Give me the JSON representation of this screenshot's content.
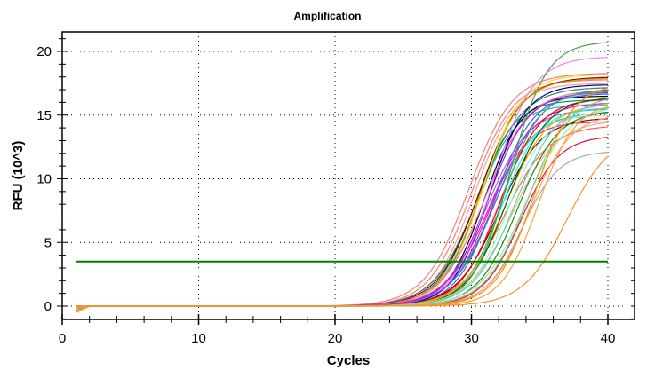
{
  "chart_data": {
    "type": "line",
    "title": "Amplification",
    "xlabel": "Cycles",
    "ylabel": "RFU (10^3)",
    "xlim": [
      0,
      42
    ],
    "ylim": [
      -1.1,
      21.5
    ],
    "xticks": [
      0,
      10,
      20,
      30,
      40
    ],
    "yticks": [
      0,
      5,
      10,
      15,
      20
    ],
    "grid": true,
    "legend": "none",
    "threshold": {
      "value": 3.5,
      "color": "#008000"
    },
    "cycles": [
      1,
      40
    ],
    "series_model": "sigmoid: baseline 0, midpoint ct, plateau max",
    "series": [
      {
        "ct": 27.6,
        "max": 18.3,
        "color": "#f08080"
      },
      {
        "ct": 27.8,
        "max": 17.8,
        "color": "#fa8072"
      },
      {
        "ct": 28.0,
        "max": 17.5,
        "color": "#f4a0a0"
      },
      {
        "ct": 28.1,
        "max": 16.2,
        "color": "#008b8b"
      },
      {
        "ct": 28.2,
        "max": 15.8,
        "color": "#20b2aa"
      },
      {
        "ct": 28.3,
        "max": 17.2,
        "color": "#2e8b57"
      },
      {
        "ct": 28.4,
        "max": 18.0,
        "color": "#8b0000"
      },
      {
        "ct": 28.5,
        "max": 17.9,
        "color": "#d4a017"
      },
      {
        "ct": 28.6,
        "max": 18.2,
        "color": "#ffd700"
      },
      {
        "ct": 28.7,
        "max": 16.5,
        "color": "#000000"
      },
      {
        "ct": 28.8,
        "max": 17.0,
        "color": "#ff69b4"
      },
      {
        "ct": 28.9,
        "max": 15.5,
        "color": "#9370db"
      },
      {
        "ct": 29.0,
        "max": 16.8,
        "color": "#8a2be2"
      },
      {
        "ct": 29.0,
        "max": 14.5,
        "color": "#ff1493"
      },
      {
        "ct": 29.1,
        "max": 17.4,
        "color": "#00008b"
      },
      {
        "ct": 29.2,
        "max": 16.0,
        "color": "#ff00ff"
      },
      {
        "ct": 29.3,
        "max": 15.2,
        "color": "#00ced1"
      },
      {
        "ct": 29.4,
        "max": 19.6,
        "color": "#ee82ee"
      },
      {
        "ct": 29.5,
        "max": 16.7,
        "color": "#4169e1"
      },
      {
        "ct": 29.6,
        "max": 15.0,
        "color": "#ffb6c1"
      },
      {
        "ct": 29.7,
        "max": 17.1,
        "color": "#6a5acd"
      },
      {
        "ct": 29.8,
        "max": 14.8,
        "color": "#800000"
      },
      {
        "ct": 29.9,
        "max": 16.3,
        "color": "#ff0000"
      },
      {
        "ct": 30.0,
        "max": 15.6,
        "color": "#00ffff"
      },
      {
        "ct": 30.1,
        "max": 16.9,
        "color": "#3cb371"
      },
      {
        "ct": 30.2,
        "max": 14.2,
        "color": "#ff6347"
      },
      {
        "ct": 30.3,
        "max": 15.9,
        "color": "#ffa500"
      },
      {
        "ct": 30.4,
        "max": 16.4,
        "color": "#006400"
      },
      {
        "ct": 30.5,
        "max": 15.3,
        "color": "#7fffd4"
      },
      {
        "ct": 30.6,
        "max": 20.8,
        "color": "#559955"
      },
      {
        "ct": 30.8,
        "max": 14.6,
        "color": "#deb887"
      },
      {
        "ct": 31.0,
        "max": 16.1,
        "color": "#66cdaa"
      },
      {
        "ct": 31.2,
        "max": 15.4,
        "color": "#228b22"
      },
      {
        "ct": 31.4,
        "max": 13.4,
        "color": "#dc143c"
      },
      {
        "ct": 31.5,
        "max": 12.2,
        "color": "#aaaaaa"
      },
      {
        "ct": 31.7,
        "max": 15.8,
        "color": "#90ee90"
      },
      {
        "ct": 31.9,
        "max": 16.6,
        "color": "#8fbc8f"
      },
      {
        "ct": 32.1,
        "max": 15.1,
        "color": "#f4a460"
      },
      {
        "ct": 32.4,
        "max": 17.5,
        "color": "#ff8c00"
      },
      {
        "ct": 32.7,
        "max": 16.0,
        "color": "#ffa040"
      },
      {
        "ct": 34.8,
        "max": 13.6,
        "color": "#ff9020"
      }
    ]
  }
}
